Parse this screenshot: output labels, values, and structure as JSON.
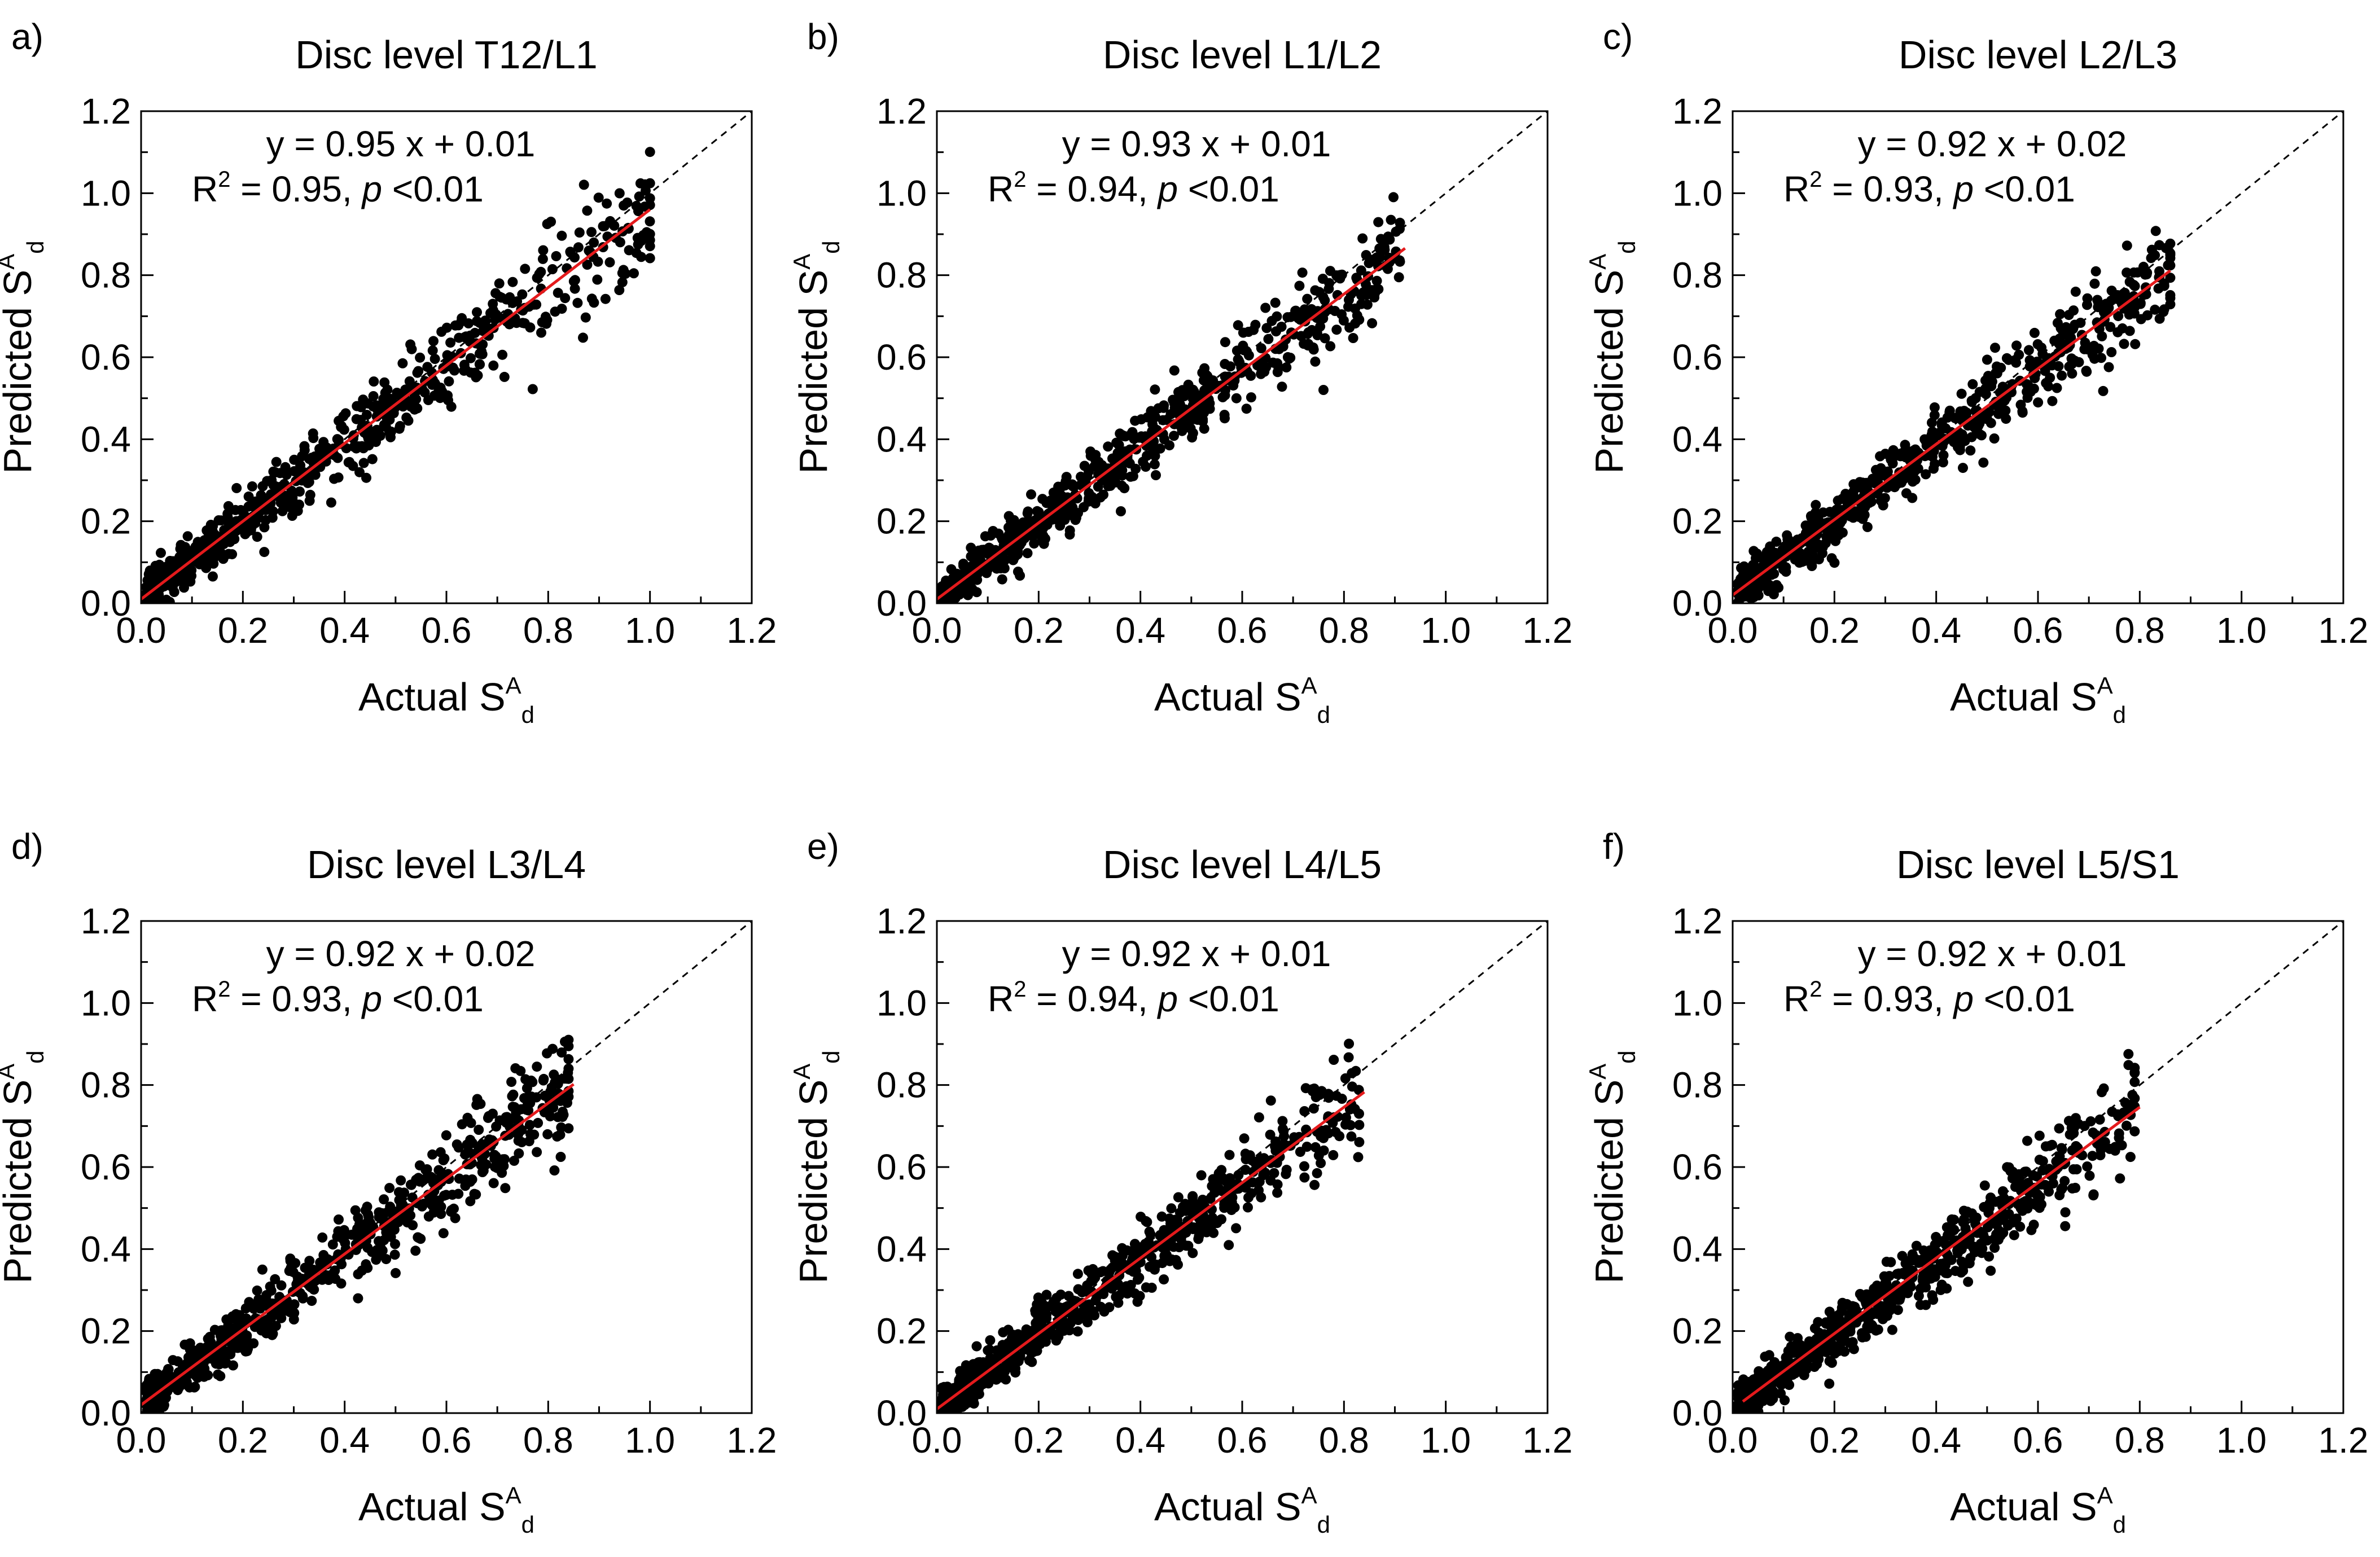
{
  "figure": {
    "description_colors": {
      "points": "#000000",
      "fit_line": "#e41a1c",
      "identity_line": "#000000",
      "background": "#ffffff"
    }
  },
  "chart_data": [
    {
      "type": "scatter",
      "panel_letter": "a)",
      "title": "Disc level T12/L1",
      "xlabel": "Actual S",
      "xlabel_sup": "A",
      "xlabel_sub": "d",
      "ylabel": "Predicted S",
      "ylabel_sup": "A",
      "ylabel_sub": "d",
      "xlim": [
        0,
        1.2
      ],
      "ylim": [
        0,
        1.2
      ],
      "xticks": [
        "0.0",
        "0.2",
        "0.4",
        "0.6",
        "0.8",
        "1.0",
        "1.2"
      ],
      "yticks": [
        "0.0",
        "0.2",
        "0.4",
        "0.6",
        "0.8",
        "1.0",
        "1.2"
      ],
      "equation": "y = 0.95 x + 0.01",
      "r2_prefix": "R",
      "r2_sup": "2",
      "r2_value": " = 0.95, ",
      "p_label": "p",
      "p_value": " <0.01",
      "fit": {
        "slope": 0.95,
        "intercept": 0.01,
        "x_range": [
          0.0,
          1.0
        ]
      },
      "identity_line": true,
      "point_cloud": {
        "x_max": 1.0,
        "spread": 0.06,
        "n": 700
      }
    },
    {
      "type": "scatter",
      "panel_letter": "b)",
      "title": "Disc level L1/L2",
      "xlabel": "Actual S",
      "xlabel_sup": "A",
      "xlabel_sub": "d",
      "ylabel": "Predicted S",
      "ylabel_sup": "A",
      "ylabel_sub": "d",
      "xlim": [
        0,
        1.2
      ],
      "ylim": [
        0,
        1.2
      ],
      "xticks": [
        "0.0",
        "0.2",
        "0.4",
        "0.6",
        "0.8",
        "1.0",
        "1.2"
      ],
      "yticks": [
        "0.0",
        "0.2",
        "0.4",
        "0.6",
        "0.8",
        "1.0",
        "1.2"
      ],
      "equation": "y = 0.93 x + 0.01",
      "r2_prefix": "R",
      "r2_sup": "2",
      "r2_value": " = 0.94, ",
      "p_label": "p",
      "p_value": " <0.01",
      "fit": {
        "slope": 0.93,
        "intercept": 0.01,
        "x_range": [
          0.0,
          0.92
        ]
      },
      "identity_line": true,
      "point_cloud": {
        "x_max": 0.91,
        "spread": 0.06,
        "n": 700
      }
    },
    {
      "type": "scatter",
      "panel_letter": "c)",
      "title": "Disc level L2/L3",
      "xlabel": "Actual S",
      "xlabel_sup": "A",
      "xlabel_sub": "d",
      "ylabel": "Predicted S",
      "ylabel_sup": "A",
      "ylabel_sub": "d",
      "xlim": [
        0,
        1.2
      ],
      "ylim": [
        0,
        1.2
      ],
      "xticks": [
        "0.0",
        "0.2",
        "0.4",
        "0.6",
        "0.8",
        "1.0",
        "1.2"
      ],
      "yticks": [
        "0.0",
        "0.2",
        "0.4",
        "0.6",
        "0.8",
        "1.0",
        "1.2"
      ],
      "equation": "y = 0.92 x + 0.02",
      "r2_prefix": "R",
      "r2_sup": "2",
      "r2_value": " = 0.93, ",
      "p_label": "p",
      "p_value": " <0.01",
      "fit": {
        "slope": 0.92,
        "intercept": 0.02,
        "x_range": [
          0.0,
          0.86
        ]
      },
      "identity_line": true,
      "point_cloud": {
        "x_max": 0.86,
        "spread": 0.06,
        "n": 700
      }
    },
    {
      "type": "scatter",
      "panel_letter": "d)",
      "title": "Disc level L3/L4",
      "xlabel": "Actual S",
      "xlabel_sup": "A",
      "xlabel_sub": "d",
      "ylabel": "Predicted S",
      "ylabel_sup": "A",
      "ylabel_sub": "d",
      "xlim": [
        0,
        1.2
      ],
      "ylim": [
        0,
        1.2
      ],
      "xticks": [
        "0.0",
        "0.2",
        "0.4",
        "0.6",
        "0.8",
        "1.0",
        "1.2"
      ],
      "yticks": [
        "0.0",
        "0.2",
        "0.4",
        "0.6",
        "0.8",
        "1.0",
        "1.2"
      ],
      "equation": "y = 0.92 x + 0.02",
      "r2_prefix": "R",
      "r2_sup": "2",
      "r2_value": " = 0.93, ",
      "p_label": "p",
      "p_value": " <0.01",
      "fit": {
        "slope": 0.92,
        "intercept": 0.02,
        "x_range": [
          0.0,
          0.85
        ]
      },
      "identity_line": true,
      "point_cloud": {
        "x_max": 0.84,
        "spread": 0.06,
        "n": 700
      }
    },
    {
      "type": "scatter",
      "panel_letter": "e)",
      "title": "Disc level L4/L5",
      "xlabel": "Actual S",
      "xlabel_sup": "A",
      "xlabel_sub": "d",
      "ylabel": "Predicted S",
      "ylabel_sup": "A",
      "ylabel_sub": "d",
      "xlim": [
        0,
        1.2
      ],
      "ylim": [
        0,
        1.2
      ],
      "xticks": [
        "0.0",
        "0.2",
        "0.4",
        "0.6",
        "0.8",
        "1.0",
        "1.2"
      ],
      "yticks": [
        "0.0",
        "0.2",
        "0.4",
        "0.6",
        "0.8",
        "1.0",
        "1.2"
      ],
      "equation": "y = 0.92 x + 0.01",
      "r2_prefix": "R",
      "r2_sup": "2",
      "r2_value": " = 0.94, ",
      "p_label": "p",
      "p_value": " <0.01",
      "fit": {
        "slope": 0.92,
        "intercept": 0.01,
        "x_range": [
          0.0,
          0.84
        ]
      },
      "identity_line": true,
      "point_cloud": {
        "x_max": 0.83,
        "spread": 0.06,
        "n": 700
      }
    },
    {
      "type": "scatter",
      "panel_letter": "f)",
      "title": "Disc level L5/S1",
      "xlabel": "Actual S",
      "xlabel_sup": "A",
      "xlabel_sub": "d",
      "ylabel": "Predicted S",
      "ylabel_sup": "A",
      "ylabel_sub": "d",
      "xlim": [
        0,
        1.2
      ],
      "ylim": [
        0,
        1.2
      ],
      "xticks": [
        "0.0",
        "0.2",
        "0.4",
        "0.6",
        "0.8",
        "1.0",
        "1.2"
      ],
      "yticks": [
        "0.0",
        "0.2",
        "0.4",
        "0.6",
        "0.8",
        "1.0",
        "1.2"
      ],
      "equation": "y = 0.92 x + 0.01",
      "r2_prefix": "R",
      "r2_sup": "2",
      "r2_value": " = 0.93, ",
      "p_label": "p",
      "p_value": " <0.01",
      "fit": {
        "slope": 0.92,
        "intercept": 0.01,
        "x_range": [
          0.02,
          0.8
        ]
      },
      "identity_line": true,
      "point_cloud": {
        "x_max": 0.79,
        "spread": 0.06,
        "n": 700
      }
    }
  ]
}
